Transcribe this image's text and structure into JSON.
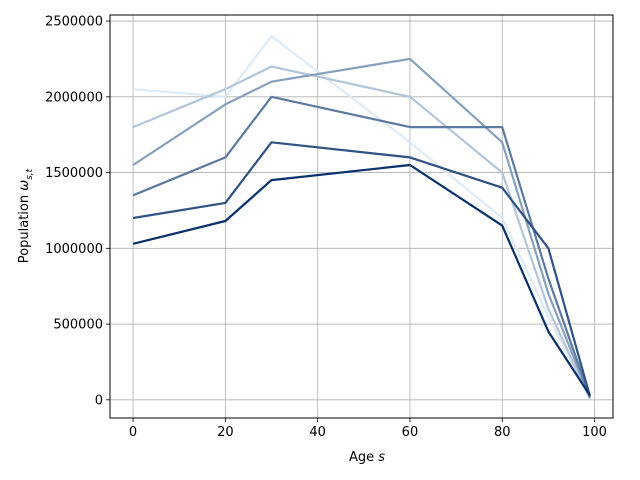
{
  "chart_data": {
    "type": "line",
    "title": "",
    "xlabel": {
      "text": "Age ",
      "var": "s"
    },
    "ylabel": {
      "text": "Population ",
      "var": "ω",
      "sub": "s,t"
    },
    "xlim": [
      -5,
      104
    ],
    "ylim": [
      -120000,
      2540000
    ],
    "xticks": [
      0,
      20,
      40,
      60,
      80,
      100
    ],
    "yticks": [
      0,
      500000,
      1000000,
      1500000,
      2000000,
      2500000
    ],
    "xtick_labels": [
      "0",
      "20",
      "40",
      "60",
      "80",
      "100"
    ],
    "ytick_labels": [
      "0",
      "500000",
      "1000000",
      "1500000",
      "2000000",
      "2500000"
    ],
    "grid": true,
    "colormap": "Blues",
    "color_light": "#deebf7",
    "color_dark": "#08306b",
    "ages": {
      "start": 0,
      "end": 99
    },
    "series_description": "Population by age for successive years; lighter curves are earlier years, darker curves later years.",
    "series": [
      {
        "index": 0,
        "values_at_ages": {
          "0": 2050000,
          "20": 2000000,
          "30": 2400000,
          "60": 1700000,
          "80": 1200000,
          "90": 550000,
          "99": 5000
        }
      },
      {
        "index": 10,
        "values_at_ages": {
          "0": 1800000,
          "20": 2050000,
          "30": 2200000,
          "60": 2000000,
          "80": 1500000,
          "90": 600000,
          "99": 8000
        }
      },
      {
        "index": 20,
        "values_at_ages": {
          "0": 1550000,
          "20": 1950000,
          "30": 2100000,
          "60": 2250000,
          "80": 1700000,
          "90": 700000,
          "99": 12000
        }
      },
      {
        "index": 30,
        "values_at_ages": {
          "0": 1350000,
          "20": 1600000,
          "30": 2000000,
          "60": 1800000,
          "80": 1800000,
          "90": 800000,
          "99": 18000
        }
      },
      {
        "index": 40,
        "values_at_ages": {
          "0": 1200000,
          "20": 1300000,
          "30": 1700000,
          "60": 1600000,
          "80": 1400000,
          "90": 1000000,
          "99": 25000
        }
      },
      {
        "index": 49,
        "values_at_ages": {
          "0": 1030000,
          "20": 1180000,
          "30": 1450000,
          "60": 1550000,
          "80": 1150000,
          "90": 450000,
          "99": 30000
        }
      }
    ]
  }
}
